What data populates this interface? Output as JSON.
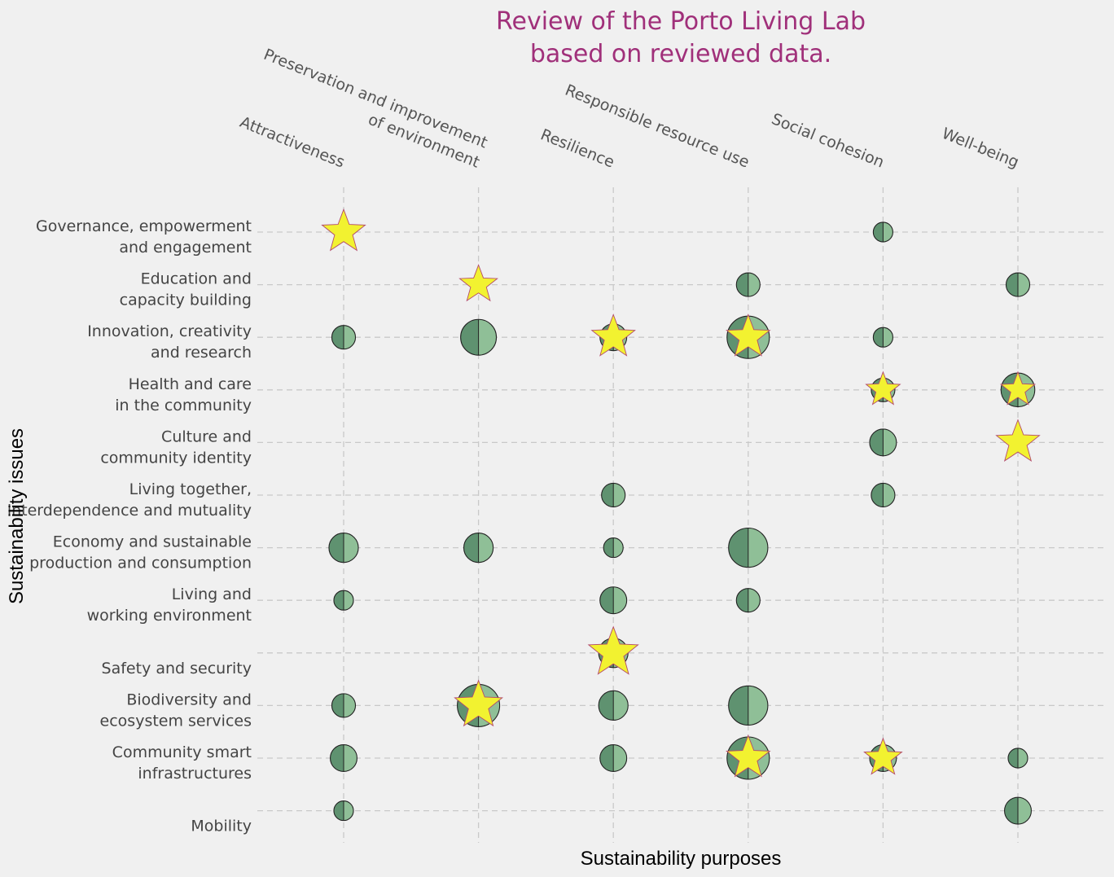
{
  "chart_data": {
    "type": "scatter",
    "title": [
      "Review of the Porto Living Lab",
      "based on reviewed data."
    ],
    "xlabel": "Sustainability purposes",
    "ylabel": "Sustainability issues",
    "categories_x": [
      [
        "Attractiveness"
      ],
      [
        "Preservation and improvement",
        "of environment"
      ],
      [
        "Resilience"
      ],
      [
        "Responsible resource use"
      ],
      [
        "Social cohesion"
      ],
      [
        "Well-being"
      ]
    ],
    "categories_y": [
      [
        "Governance, empowerment",
        "and engagement"
      ],
      [
        "Education and",
        "capacity building"
      ],
      [
        "Innovation, creativity",
        "and research"
      ],
      [
        "Health and care",
        "in the community"
      ],
      [
        "Culture and",
        "community identity"
      ],
      [
        "Living together,",
        "interdependence and mutuality"
      ],
      [
        "Economy and sustainable",
        "production and consumption"
      ],
      [
        "Living and",
        "working environment"
      ],
      [
        "Safety and security"
      ],
      [
        "Biodiversity and",
        "ecosystem services"
      ],
      [
        "Community smart",
        "infrastructures"
      ],
      [
        "Mobility"
      ]
    ],
    "bubbles": [
      {
        "x": 4,
        "y": 0,
        "size": 1
      },
      {
        "x": 3,
        "y": 1,
        "size": 2
      },
      {
        "x": 5,
        "y": 1,
        "size": 2
      },
      {
        "x": 0,
        "y": 2,
        "size": 2
      },
      {
        "x": 1,
        "y": 2,
        "size": 7
      },
      {
        "x": 2,
        "y": 2,
        "size": 3
      },
      {
        "x": 3,
        "y": 2,
        "size": 11
      },
      {
        "x": 4,
        "y": 2,
        "size": 1
      },
      {
        "x": 4,
        "y": 3,
        "size": 2
      },
      {
        "x": 5,
        "y": 3,
        "size": 6
      },
      {
        "x": 4,
        "y": 4,
        "size": 3
      },
      {
        "x": 2,
        "y": 5,
        "size": 2
      },
      {
        "x": 4,
        "y": 5,
        "size": 2
      },
      {
        "x": 0,
        "y": 6,
        "size": 4
      },
      {
        "x": 1,
        "y": 6,
        "size": 4
      },
      {
        "x": 2,
        "y": 6,
        "size": 1
      },
      {
        "x": 3,
        "y": 6,
        "size": 9
      },
      {
        "x": 0,
        "y": 7,
        "size": 1
      },
      {
        "x": 2,
        "y": 7,
        "size": 3
      },
      {
        "x": 3,
        "y": 7,
        "size": 2
      },
      {
        "x": 2,
        "y": 8,
        "size": 4
      },
      {
        "x": 0,
        "y": 9,
        "size": 2
      },
      {
        "x": 1,
        "y": 9,
        "size": 11
      },
      {
        "x": 2,
        "y": 9,
        "size": 4
      },
      {
        "x": 3,
        "y": 9,
        "size": 9
      },
      {
        "x": 0,
        "y": 10,
        "size": 3
      },
      {
        "x": 2,
        "y": 10,
        "size": 3
      },
      {
        "x": 3,
        "y": 10,
        "size": 11
      },
      {
        "x": 4,
        "y": 10,
        "size": 3
      },
      {
        "x": 5,
        "y": 10,
        "size": 1
      },
      {
        "x": 0,
        "y": 11,
        "size": 1
      },
      {
        "x": 5,
        "y": 11,
        "size": 3
      }
    ],
    "stars": [
      {
        "x": 0,
        "y": 0,
        "size": 5
      },
      {
        "x": 1,
        "y": 1,
        "size": 3
      },
      {
        "x": 2,
        "y": 2,
        "size": 5
      },
      {
        "x": 3,
        "y": 2,
        "size": 5
      },
      {
        "x": 4,
        "y": 3,
        "size": 2
      },
      {
        "x": 5,
        "y": 3,
        "size": 2
      },
      {
        "x": 5,
        "y": 4,
        "size": 5
      },
      {
        "x": 2,
        "y": 8,
        "size": 8
      },
      {
        "x": 1,
        "y": 9,
        "size": 7
      },
      {
        "x": 3,
        "y": 10,
        "size": 5
      },
      {
        "x": 4,
        "y": 10,
        "size": 3
      }
    ],
    "colors": {
      "title": "#a0307a",
      "bubble_dark": "#5f9270",
      "bubble_light": "#8fbf97",
      "star_fill": "#f2f230",
      "star_edge": "#b34a6a",
      "grid": "#c9c9c9",
      "background": "#f0f0f0"
    },
    "grid": true,
    "grid_style": "dashed"
  }
}
